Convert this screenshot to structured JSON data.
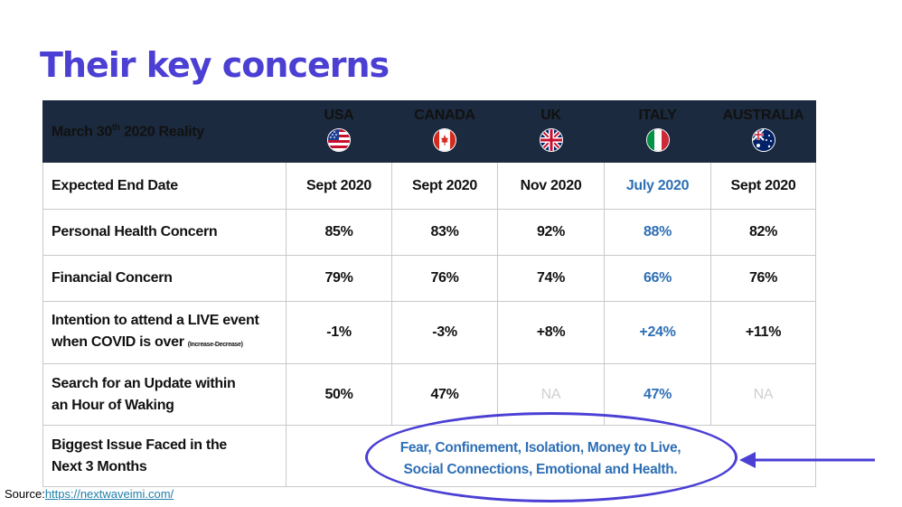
{
  "title": "Their key concerns",
  "table": {
    "header_label_main": "March 30",
    "header_label_sup": "th",
    "header_label_rest": " 2020 Reality",
    "countries": [
      {
        "name": "USA",
        "flag_icon": "usa-flag-icon"
      },
      {
        "name": "CANADA",
        "flag_icon": "canada-flag-icon"
      },
      {
        "name": "UK",
        "flag_icon": "uk-flag-icon"
      },
      {
        "name": "ITALY",
        "flag_icon": "italy-flag-icon"
      },
      {
        "name": "AUSTRALIA",
        "flag_icon": "australia-flag-icon"
      }
    ],
    "rows": [
      {
        "label": "Expected End Date",
        "values": [
          "Sept 2020",
          "Sept 2020",
          "Nov 2020",
          "July 2020",
          "Sept 2020"
        ]
      },
      {
        "label": "Personal Health Concern",
        "values": [
          "85%",
          "83%",
          "92%",
          "88%",
          "82%"
        ]
      },
      {
        "label": "Financial Concern",
        "values": [
          "79%",
          "76%",
          "74%",
          "66%",
          "76%"
        ]
      },
      {
        "label_line1": "Intention to attend a LIVE event",
        "label_line2": "when COVID is over",
        "label_note": "(Increase-Decrease)",
        "values": [
          "-1%",
          "-3%",
          "+8%",
          "+24%",
          "+11%"
        ]
      },
      {
        "label_line1": "Search for an Update within",
        "label_line2": "an Hour of Waking",
        "values": [
          "50%",
          "47%",
          "NA",
          "47%",
          "NA"
        ]
      },
      {
        "label_line1": "Biggest Issue Faced in the",
        "label_line2": "Next 3 Months",
        "issue_line1": "Fear, Confinement, Isolation, Money to Live,",
        "issue_line2": "Social Connections, Emotional and Health."
      }
    ]
  },
  "colors": {
    "title": "#4b3fd4",
    "header_bg": "#1b2a3e",
    "italy_highlight": "#2e6fb5",
    "na_text": "#cfcfcf",
    "annotation": "#4b3fd4"
  },
  "source": {
    "label": "Source:",
    "link_text": "https://nextwaveimi.com/"
  }
}
